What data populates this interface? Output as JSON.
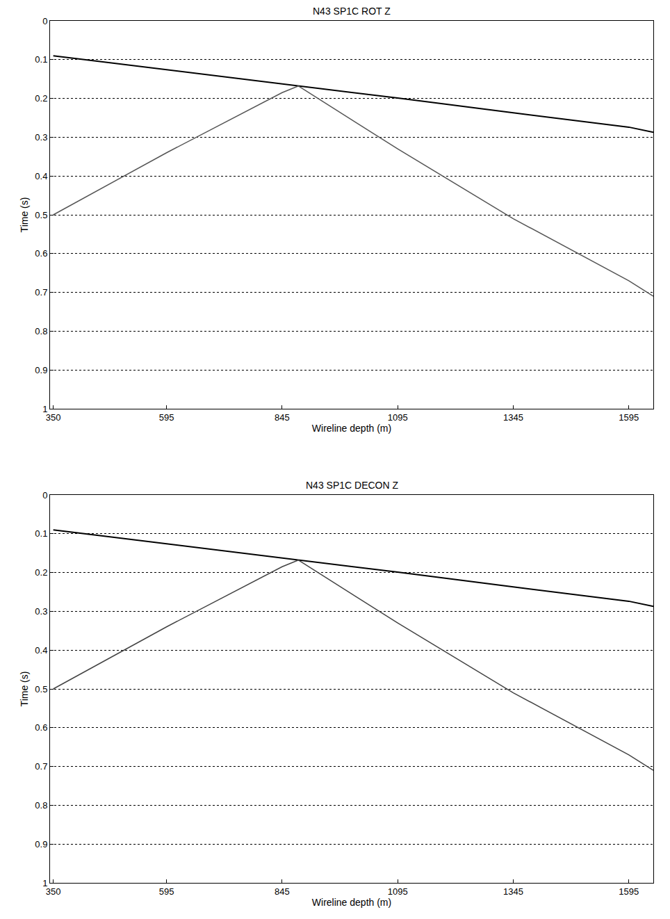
{
  "chart_data": [
    {
      "type": "line",
      "title": "N43 SP1C ROT Z",
      "xlabel": "Wireline depth (m)",
      "ylabel": "Time (s)",
      "xlim": [
        343,
        1648
      ],
      "xticks": [
        350,
        595,
        845,
        1095,
        1345,
        1595
      ],
      "ylim": [
        1,
        0
      ],
      "yticks": [
        0,
        0.1,
        0.2,
        0.3,
        0.4,
        0.5,
        0.6,
        0.7,
        0.8,
        0.9,
        1
      ],
      "grid": true,
      "series": [
        {
          "color": "#000000",
          "x": [
            350,
            595,
            845,
            1095,
            1345,
            1595,
            1648
          ],
          "values": [
            0.09,
            0.126,
            0.162,
            0.199,
            0.237,
            0.274,
            0.287
          ]
        },
        {
          "color": "#555555",
          "x": [
            350,
            595,
            845,
            880
          ],
          "values": [
            0.5,
            0.34,
            0.185,
            0.168
          ]
        },
        {
          "color": "#555555",
          "x": [
            880,
            1095,
            1345,
            1595,
            1648
          ],
          "values": [
            0.168,
            0.33,
            0.51,
            0.67,
            0.71
          ]
        }
      ]
    },
    {
      "type": "line",
      "title": "N43 SP1C DECON Z",
      "xlabel": "Wireline depth (m)",
      "ylabel": "Time (s)",
      "xlim": [
        343,
        1648
      ],
      "xticks": [
        350,
        595,
        845,
        1095,
        1345,
        1595
      ],
      "ylim": [
        1,
        0
      ],
      "yticks": [
        0,
        0.1,
        0.2,
        0.3,
        0.4,
        0.5,
        0.6,
        0.7,
        0.8,
        0.9,
        1
      ],
      "grid": true,
      "series": [
        {
          "color": "#000000",
          "x": [
            350,
            595,
            845,
            1095,
            1345,
            1595,
            1648
          ],
          "values": [
            0.09,
            0.126,
            0.162,
            0.199,
            0.237,
            0.274,
            0.287
          ]
        },
        {
          "color": "#444444",
          "x": [
            350,
            595,
            845,
            880
          ],
          "values": [
            0.5,
            0.34,
            0.185,
            0.168
          ]
        },
        {
          "color": "#444444",
          "x": [
            880,
            1095,
            1345,
            1595,
            1648
          ],
          "values": [
            0.168,
            0.33,
            0.51,
            0.67,
            0.71
          ]
        }
      ]
    }
  ]
}
